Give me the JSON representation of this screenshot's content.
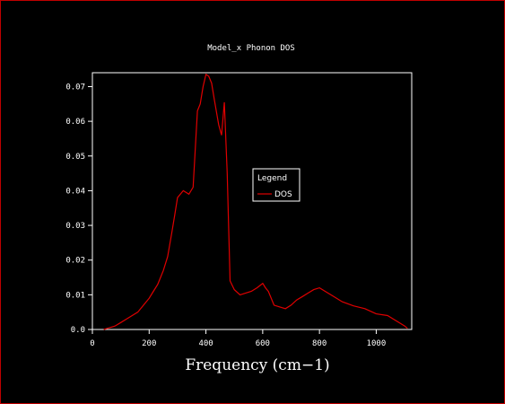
{
  "colors": {
    "background": "#000000",
    "border": "#c00000",
    "axes": "#ffffff",
    "series": "#e00000"
  },
  "chart_data": {
    "type": "line",
    "title": "Model_x Phonon DOS",
    "xlabel": "Frequency (cm−1)",
    "ylabel": "",
    "xlim": [
      0,
      1125
    ],
    "ylim": [
      0,
      0.074
    ],
    "xticks": [
      0,
      200,
      400,
      600,
      800,
      1000
    ],
    "yticks": [
      0.0,
      0.01,
      0.02,
      0.03,
      0.04,
      0.05,
      0.06,
      0.07
    ],
    "xtick_labels": [
      "0",
      "200",
      "400",
      "600",
      "800",
      "1000"
    ],
    "ytick_labels": [
      "0.0",
      "0.01",
      "0.02",
      "0.03",
      "0.04",
      "0.05",
      "0.06",
      "0.07"
    ],
    "grid": false,
    "legend": {
      "title": "Legend",
      "placement": "center-right",
      "entries": [
        "DOS"
      ]
    },
    "series": [
      {
        "name": "DOS",
        "x": [
          40,
          60,
          80,
          100,
          120,
          140,
          160,
          180,
          200,
          215,
          230,
          250,
          265,
          280,
          290,
          300,
          320,
          340,
          355,
          370,
          380,
          390,
          400,
          410,
          420,
          430,
          445,
          455,
          465,
          475,
          485,
          500,
          520,
          540,
          560,
          580,
          600,
          610,
          620,
          640,
          660,
          680,
          700,
          720,
          740,
          760,
          780,
          800,
          820,
          850,
          880,
          920,
          960,
          1000,
          1040,
          1080,
          1100,
          1110
        ],
        "y": [
          0.0,
          0.0005,
          0.001,
          0.002,
          0.003,
          0.004,
          0.005,
          0.007,
          0.009,
          0.011,
          0.013,
          0.017,
          0.021,
          0.028,
          0.033,
          0.038,
          0.04,
          0.039,
          0.041,
          0.063,
          0.065,
          0.07,
          0.0735,
          0.073,
          0.071,
          0.066,
          0.059,
          0.056,
          0.0655,
          0.045,
          0.014,
          0.0115,
          0.01,
          0.0105,
          0.011,
          0.012,
          0.0133,
          0.012,
          0.011,
          0.007,
          0.0065,
          0.006,
          0.007,
          0.0085,
          0.0095,
          0.0105,
          0.0115,
          0.012,
          0.011,
          0.0095,
          0.008,
          0.0068,
          0.006,
          0.0045,
          0.004,
          0.002,
          0.001,
          0.0003
        ]
      }
    ]
  }
}
